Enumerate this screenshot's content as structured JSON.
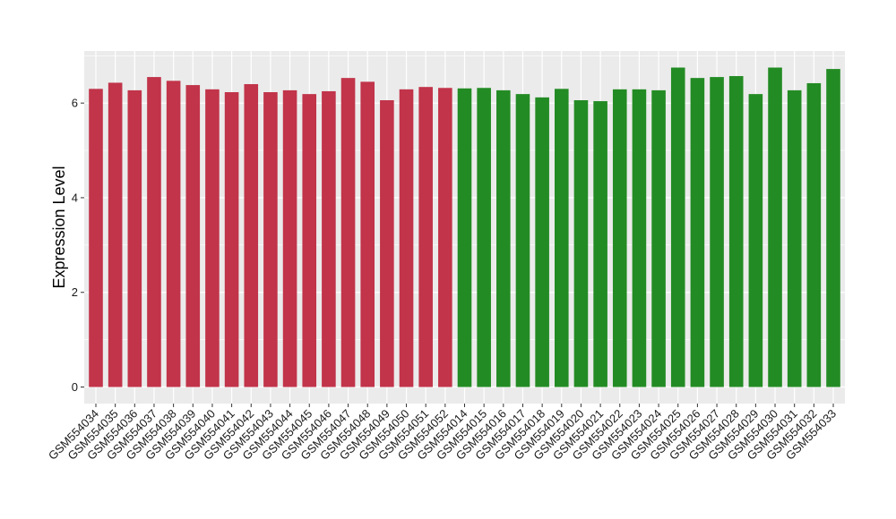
{
  "chart_data": {
    "type": "bar",
    "title": "",
    "xlabel": "",
    "ylabel": "Expression Level",
    "ylim": [
      -0.35,
      7.1
    ],
    "yticks": [
      0,
      2,
      4,
      6
    ],
    "grid": true,
    "background": "#ebebeb",
    "gridline_color": "#ffffff",
    "categories": [
      "GSM554034",
      "GSM554035",
      "GSM554036",
      "GSM554037",
      "GSM554038",
      "GSM554039",
      "GSM554040",
      "GSM554041",
      "GSM554042",
      "GSM554043",
      "GSM554044",
      "GSM554045",
      "GSM554046",
      "GSM554047",
      "GSM554048",
      "GSM554049",
      "GSM554050",
      "GSM554051",
      "GSM554052",
      "GSM554014",
      "GSM554015",
      "GSM554016",
      "GSM554017",
      "GSM554018",
      "GSM554019",
      "GSM554020",
      "GSM554021",
      "GSM554022",
      "GSM554023",
      "GSM554024",
      "GSM554025",
      "GSM554026",
      "GSM554027",
      "GSM554028",
      "GSM554029",
      "GSM554030",
      "GSM554031",
      "GSM554032",
      "GSM554033"
    ],
    "values": [
      6.3,
      6.43,
      6.27,
      6.55,
      6.47,
      6.38,
      6.29,
      6.23,
      6.4,
      6.23,
      6.27,
      6.19,
      6.25,
      6.53,
      6.45,
      6.06,
      6.29,
      6.34,
      6.32,
      6.31,
      6.32,
      6.27,
      6.19,
      6.12,
      6.3,
      6.06,
      6.04,
      6.29,
      6.29,
      6.27,
      6.75,
      6.53,
      6.55,
      6.57,
      6.19,
      6.75,
      6.27,
      6.42,
      6.72
    ],
    "groups": [
      {
        "start": 0,
        "count": 19,
        "color": "#c1344a"
      },
      {
        "start": 19,
        "count": 20,
        "color": "#238b24"
      }
    ]
  }
}
